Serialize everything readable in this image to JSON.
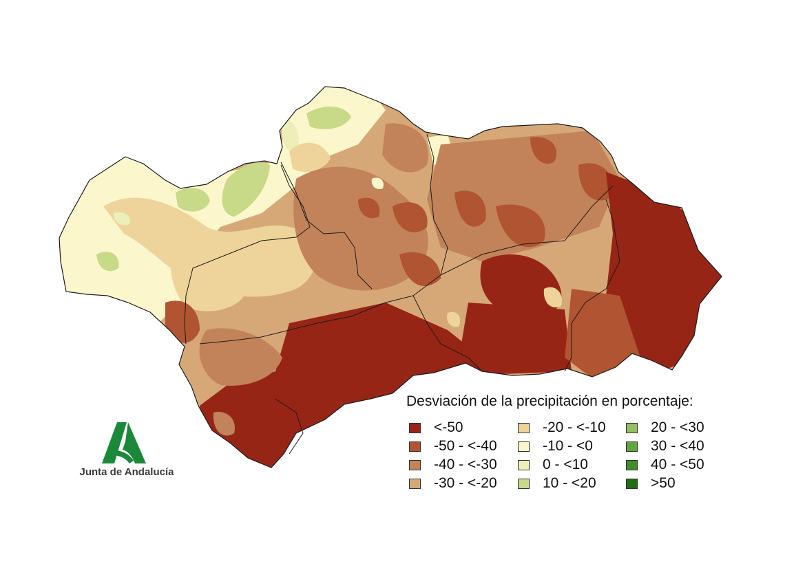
{
  "map": {
    "region": "Andalucía",
    "background": "#ffffff",
    "border_color": "#1a1a1a"
  },
  "legend": {
    "title": "Desviación de la precipitación en porcentaje:",
    "items": [
      {
        "label": "<-50",
        "color": "#972516"
      },
      {
        "label": "-50 - <-40",
        "color": "#b05431"
      },
      {
        "label": "-40 - <-30",
        "color": "#c2835a"
      },
      {
        "label": "-30 - <-20",
        "color": "#d6a878"
      },
      {
        "label": "-20 - <-10",
        "color": "#eed49a"
      },
      {
        "label": "-10 - <0",
        "color": "#fcf6cc"
      },
      {
        "label": "0 - <10",
        "color": "#edefb9"
      },
      {
        "label": "10 - <20",
        "color": "#c8d987"
      },
      {
        "label": "20 - <30",
        "color": "#93be62"
      },
      {
        "label": "30 - <40",
        "color": "#62a43d"
      },
      {
        "label": "40 - <50",
        "color": "#3f8e27"
      },
      {
        "label": ">50",
        "color": "#1c7011"
      }
    ]
  },
  "logo": {
    "text": "Junta de Andalucía",
    "color": "#1a8a3a"
  }
}
